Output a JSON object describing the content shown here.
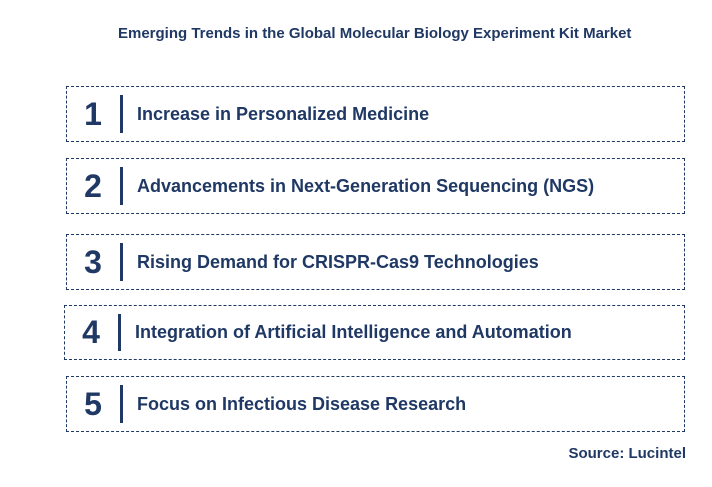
{
  "title": "Emerging Trends in the Global Molecular Biology Experiment Kit Market",
  "trends": [
    {
      "number": "1",
      "label": "Increase in Personalized Medicine"
    },
    {
      "number": "2",
      "label": "Advancements in Next-Generation Sequencing (NGS)"
    },
    {
      "number": "3",
      "label": "Rising Demand for CRISPR-Cas9 Technologies"
    },
    {
      "number": "4",
      "label": "Integration of Artificial Intelligence and Automation"
    },
    {
      "number": "5",
      "label": "Focus on Infectious Disease Research"
    }
  ],
  "source": "Source: Lucintel",
  "colors": {
    "text": "#1f3864",
    "border": "#1f3864",
    "background": "#ffffff"
  }
}
